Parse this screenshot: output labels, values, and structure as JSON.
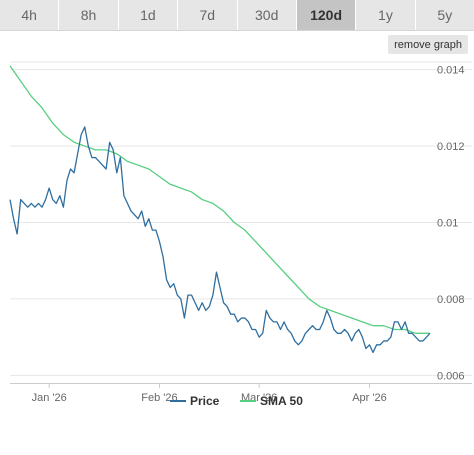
{
  "tabs": [
    {
      "label": "4h"
    },
    {
      "label": "8h"
    },
    {
      "label": "1d"
    },
    {
      "label": "7d"
    },
    {
      "label": "30d"
    },
    {
      "label": "120d",
      "active": true
    },
    {
      "label": "1y"
    },
    {
      "label": "5y"
    }
  ],
  "remove_graph_label": "remove graph",
  "colors": {
    "price": "#2f6fa0",
    "sma": "#57cf80",
    "grid": "#e6e6e6",
    "tab_bg": "#e6e6e6",
    "tab_active": "#c4c4c4"
  },
  "chart_data": {
    "type": "line",
    "x": [
      "2025-12-21",
      "2026-04-18"
    ],
    "ylim": [
      0.0058,
      0.0142
    ],
    "yticks": [
      0.006,
      0.008,
      0.01,
      0.012,
      0.014
    ],
    "ytick_labels": [
      "0.006",
      "0.008",
      "0.01",
      "0.012",
      "0.014"
    ],
    "xticks": [
      {
        "date": "2026-01-01",
        "label": "Jan '26"
      },
      {
        "date": "2026-02-01",
        "label": "Feb '26"
      },
      {
        "date": "2026-03-01",
        "label": "Mar '26"
      },
      {
        "date": "2026-04-01",
        "label": "Apr '26"
      }
    ],
    "grid": true,
    "legend_position": "bottom",
    "series": [
      {
        "name": "Price",
        "color": "#2f6fa0",
        "points": [
          [
            "2025-12-21",
            0.0106
          ],
          [
            "2025-12-22",
            0.0101
          ],
          [
            "2025-12-23",
            0.0097
          ],
          [
            "2025-12-24",
            0.0106
          ],
          [
            "2025-12-25",
            0.0105
          ],
          [
            "2025-12-26",
            0.0104
          ],
          [
            "2025-12-27",
            0.0105
          ],
          [
            "2025-12-28",
            0.0104
          ],
          [
            "2025-12-29",
            0.0105
          ],
          [
            "2025-12-30",
            0.0104
          ],
          [
            "2025-12-31",
            0.0106
          ],
          [
            "2026-01-01",
            0.0109
          ],
          [
            "2026-01-02",
            0.0106
          ],
          [
            "2026-01-03",
            0.0105
          ],
          [
            "2026-01-04",
            0.0107
          ],
          [
            "2026-01-05",
            0.0104
          ],
          [
            "2026-01-06",
            0.0111
          ],
          [
            "2026-01-07",
            0.0114
          ],
          [
            "2026-01-08",
            0.0113
          ],
          [
            "2026-01-09",
            0.0118
          ],
          [
            "2026-01-10",
            0.0123
          ],
          [
            "2026-01-11",
            0.0125
          ],
          [
            "2026-01-12",
            0.012
          ],
          [
            "2026-01-13",
            0.0117
          ],
          [
            "2026-01-14",
            0.0117
          ],
          [
            "2026-01-15",
            0.0116
          ],
          [
            "2026-01-16",
            0.0115
          ],
          [
            "2026-01-17",
            0.0114
          ],
          [
            "2026-01-18",
            0.0121
          ],
          [
            "2026-01-19",
            0.0119
          ],
          [
            "2026-01-20",
            0.0113
          ],
          [
            "2026-01-21",
            0.0117
          ],
          [
            "2026-01-22",
            0.0107
          ],
          [
            "2026-01-23",
            0.0105
          ],
          [
            "2026-01-24",
            0.0103
          ],
          [
            "2026-01-25",
            0.0102
          ],
          [
            "2026-01-26",
            0.0101
          ],
          [
            "2026-01-27",
            0.0103
          ],
          [
            "2026-01-28",
            0.0099
          ],
          [
            "2026-01-29",
            0.0101
          ],
          [
            "2026-01-30",
            0.0098
          ],
          [
            "2026-01-31",
            0.0098
          ],
          [
            "2026-02-01",
            0.0095
          ],
          [
            "2026-02-02",
            0.0091
          ],
          [
            "2026-02-03",
            0.0085
          ],
          [
            "2026-02-04",
            0.0083
          ],
          [
            "2026-02-05",
            0.0084
          ],
          [
            "2026-02-06",
            0.0081
          ],
          [
            "2026-02-07",
            0.008
          ],
          [
            "2026-02-08",
            0.0075
          ],
          [
            "2026-02-09",
            0.0081
          ],
          [
            "2026-02-10",
            0.0081
          ],
          [
            "2026-02-11",
            0.0079
          ],
          [
            "2026-02-12",
            0.0077
          ],
          [
            "2026-02-13",
            0.0079
          ],
          [
            "2026-02-14",
            0.0077
          ],
          [
            "2026-02-15",
            0.0078
          ],
          [
            "2026-02-16",
            0.0081
          ],
          [
            "2026-02-17",
            0.0087
          ],
          [
            "2026-02-18",
            0.0083
          ],
          [
            "2026-02-19",
            0.0079
          ],
          [
            "2026-02-20",
            0.0078
          ],
          [
            "2026-02-21",
            0.0076
          ],
          [
            "2026-02-22",
            0.0076
          ],
          [
            "2026-02-23",
            0.0074
          ],
          [
            "2026-02-24",
            0.0075
          ],
          [
            "2026-02-25",
            0.0075
          ],
          [
            "2026-02-26",
            0.0074
          ],
          [
            "2026-02-27",
            0.0072
          ],
          [
            "2026-02-28",
            0.0072
          ],
          [
            "2026-03-01",
            0.007
          ],
          [
            "2026-03-02",
            0.0071
          ],
          [
            "2026-03-03",
            0.0077
          ],
          [
            "2026-03-04",
            0.0075
          ],
          [
            "2026-03-05",
            0.0074
          ],
          [
            "2026-03-06",
            0.0074
          ],
          [
            "2026-03-07",
            0.0072
          ],
          [
            "2026-03-08",
            0.0074
          ],
          [
            "2026-03-09",
            0.0072
          ],
          [
            "2026-03-10",
            0.0071
          ],
          [
            "2026-03-11",
            0.0069
          ],
          [
            "2026-03-12",
            0.0068
          ],
          [
            "2026-03-13",
            0.0069
          ],
          [
            "2026-03-14",
            0.0071
          ],
          [
            "2026-03-15",
            0.0072
          ],
          [
            "2026-03-16",
            0.0073
          ],
          [
            "2026-03-17",
            0.0072
          ],
          [
            "2026-03-18",
            0.0072
          ],
          [
            "2026-03-19",
            0.0074
          ],
          [
            "2026-03-20",
            0.0077
          ],
          [
            "2026-03-21",
            0.0075
          ],
          [
            "2026-03-22",
            0.0072
          ],
          [
            "2026-03-23",
            0.0071
          ],
          [
            "2026-03-24",
            0.0071
          ],
          [
            "2026-03-25",
            0.0072
          ],
          [
            "2026-03-26",
            0.0071
          ],
          [
            "2026-03-27",
            0.0069
          ],
          [
            "2026-03-28",
            0.0071
          ],
          [
            "2026-03-29",
            0.0072
          ],
          [
            "2026-03-30",
            0.007
          ],
          [
            "2026-03-31",
            0.0067
          ],
          [
            "2026-04-01",
            0.0068
          ],
          [
            "2026-04-02",
            0.0066
          ],
          [
            "2026-04-03",
            0.0068
          ],
          [
            "2026-04-04",
            0.0068
          ],
          [
            "2026-04-05",
            0.0069
          ],
          [
            "2026-04-06",
            0.0069
          ],
          [
            "2026-04-07",
            0.007
          ],
          [
            "2026-04-08",
            0.0074
          ],
          [
            "2026-04-09",
            0.0074
          ],
          [
            "2026-04-10",
            0.0072
          ],
          [
            "2026-04-11",
            0.0074
          ],
          [
            "2026-04-12",
            0.0071
          ],
          [
            "2026-04-13",
            0.0071
          ],
          [
            "2026-04-14",
            0.007
          ],
          [
            "2026-04-15",
            0.0069
          ],
          [
            "2026-04-16",
            0.0069
          ],
          [
            "2026-04-17",
            0.007
          ],
          [
            "2026-04-18",
            0.0071
          ]
        ]
      },
      {
        "name": "SMA 50",
        "color": "#57cf80",
        "points": [
          [
            "2025-12-21",
            0.0141
          ],
          [
            "2025-12-24",
            0.0137
          ],
          [
            "2025-12-27",
            0.0133
          ],
          [
            "2025-12-30",
            0.013
          ],
          [
            "2026-01-02",
            0.0126
          ],
          [
            "2026-01-05",
            0.0123
          ],
          [
            "2026-01-08",
            0.0121
          ],
          [
            "2026-01-11",
            0.012
          ],
          [
            "2026-01-14",
            0.0119
          ],
          [
            "2026-01-17",
            0.0119
          ],
          [
            "2026-01-20",
            0.0118
          ],
          [
            "2026-01-23",
            0.0116
          ],
          [
            "2026-01-26",
            0.0115
          ],
          [
            "2026-01-29",
            0.0114
          ],
          [
            "2026-02-01",
            0.0112
          ],
          [
            "2026-02-04",
            0.011
          ],
          [
            "2026-02-07",
            0.0109
          ],
          [
            "2026-02-10",
            0.0108
          ],
          [
            "2026-02-13",
            0.0106
          ],
          [
            "2026-02-16",
            0.0105
          ],
          [
            "2026-02-19",
            0.0103
          ],
          [
            "2026-02-22",
            0.01
          ],
          [
            "2026-02-25",
            0.0098
          ],
          [
            "2026-02-28",
            0.0095
          ],
          [
            "2026-03-03",
            0.0092
          ],
          [
            "2026-03-06",
            0.0089
          ],
          [
            "2026-03-09",
            0.0086
          ],
          [
            "2026-03-12",
            0.0083
          ],
          [
            "2026-03-15",
            0.008
          ],
          [
            "2026-03-18",
            0.0078
          ],
          [
            "2026-03-21",
            0.0077
          ],
          [
            "2026-03-24",
            0.0076
          ],
          [
            "2026-03-27",
            0.0075
          ],
          [
            "2026-03-30",
            0.0074
          ],
          [
            "2026-04-02",
            0.0073
          ],
          [
            "2026-04-05",
            0.0073
          ],
          [
            "2026-04-08",
            0.0072
          ],
          [
            "2026-04-11",
            0.0072
          ],
          [
            "2026-04-14",
            0.0071
          ],
          [
            "2026-04-18",
            0.0071
          ]
        ]
      }
    ]
  }
}
